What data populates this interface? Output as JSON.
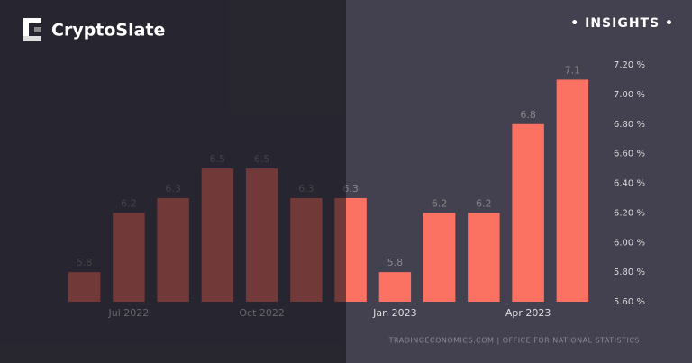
{
  "brand": "CryptoSlate",
  "badge": "• INSIGHTS •",
  "chart_data": {
    "type": "bar",
    "categories": [
      null,
      "Jul 2022",
      null,
      null,
      "Oct 2022",
      null,
      null,
      "Jan 2023",
      null,
      null,
      "Apr 2023",
      null
    ],
    "values": [
      5.8,
      6.2,
      6.3,
      6.5,
      6.5,
      6.3,
      6.3,
      5.8,
      6.2,
      6.2,
      6.8,
      7.1
    ],
    "color": "#fb7262",
    "ylim": [
      5.6,
      7.2
    ],
    "yticks": [
      {
        "value": 5.6,
        "label": "5.60 %"
      },
      {
        "value": 5.8,
        "label": "5.80 %"
      },
      {
        "value": 6.0,
        "label": "6.00 %"
      },
      {
        "value": 6.2,
        "label": "6.20 %"
      },
      {
        "value": 6.4,
        "label": "6.40 %"
      },
      {
        "value": 6.6,
        "label": "6.60 %"
      },
      {
        "value": 6.8,
        "label": "6.80 %"
      },
      {
        "value": 7.0,
        "label": "7.00 %"
      },
      {
        "value": 7.2,
        "label": "7.20 %"
      }
    ],
    "source": "TRADINGECONOMICS.COM  |  OFFICE FOR NATIONAL STATISTICS"
  }
}
